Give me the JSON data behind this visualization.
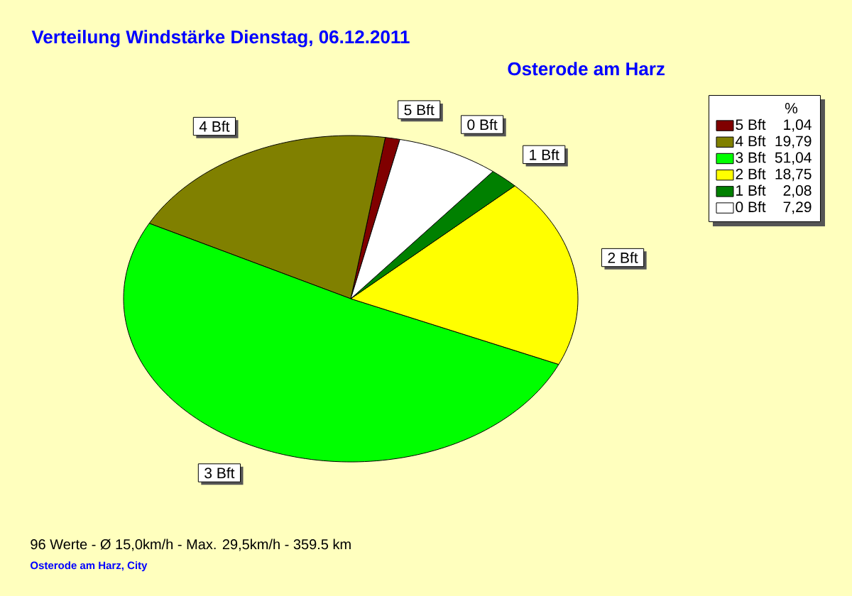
{
  "chart_data": {
    "type": "pie",
    "title": "Verteilung Windstärke Dienstag, 06.12.2011",
    "subtitle": "Osterode am Harz",
    "legend_title": "%",
    "categories": [
      "5 Bft",
      "4 Bft",
      "3 Bft",
      "2 Bft",
      "1 Bft",
      "0 Bft"
    ],
    "values": [
      1.04,
      19.79,
      51.04,
      18.75,
      2.08,
      7.29
    ],
    "value_labels": [
      "1,04",
      "19,79",
      "51,04",
      "18,75",
      "2,08",
      "7,29"
    ],
    "colors": [
      "#800000",
      "#808000",
      "#00ff00",
      "#ffff00",
      "#008000",
      "#ffffff"
    ],
    "legend": "top right",
    "annotations": [
      "96 Werte - Ø 15,0km/h - Max. 29,5km/h - 359.5 km",
      "Osterode am Harz, City"
    ]
  }
}
